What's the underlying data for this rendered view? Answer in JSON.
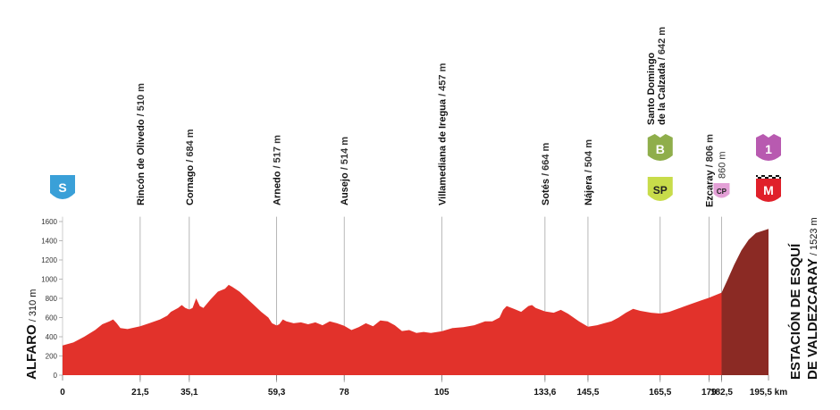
{
  "chart_data": {
    "type": "area",
    "colors": {
      "fill": "#e2322b",
      "climb_fill": "#8b2a24",
      "gridline": "#dddddd",
      "marker_line": "#999999"
    },
    "y_ticks": [
      "0",
      "200",
      "400",
      "600",
      "800",
      "1000",
      "1200",
      "1400",
      "1600"
    ],
    "ylim": [
      0,
      1700
    ],
    "xlim": [
      0,
      195.5
    ],
    "unit_label": "km",
    "x_ticks": [
      {
        "x": 0,
        "label": "0"
      },
      {
        "x": 21.5,
        "label": "21,5"
      },
      {
        "x": 35.1,
        "label": "35,1"
      },
      {
        "x": 59.3,
        "label": "59,3"
      },
      {
        "x": 78,
        "label": "78"
      },
      {
        "x": 105,
        "label": "105"
      },
      {
        "x": 133.6,
        "label": "133,6"
      },
      {
        "x": 145.5,
        "label": "145,5"
      },
      {
        "x": 165.5,
        "label": "165,5"
      },
      {
        "x": 179,
        "label": "179"
      },
      {
        "x": 182.5,
        "label": "182,5"
      },
      {
        "x": 195.5,
        "label": "195,5 km"
      }
    ],
    "profile": [
      [
        0,
        310
      ],
      [
        3,
        340
      ],
      [
        6,
        400
      ],
      [
        9,
        470
      ],
      [
        11,
        530
      ],
      [
        13,
        560
      ],
      [
        14,
        580
      ],
      [
        15,
        540
      ],
      [
        16,
        490
      ],
      [
        18,
        480
      ],
      [
        21.5,
        510
      ],
      [
        24,
        540
      ],
      [
        27,
        580
      ],
      [
        29,
        620
      ],
      [
        30,
        660
      ],
      [
        32,
        700
      ],
      [
        33,
        730
      ],
      [
        34,
        700
      ],
      [
        35.1,
        684
      ],
      [
        36,
        700
      ],
      [
        37,
        800
      ],
      [
        38,
        720
      ],
      [
        39,
        700
      ],
      [
        41,
        790
      ],
      [
        43,
        870
      ],
      [
        45,
        900
      ],
      [
        46,
        940
      ],
      [
        47,
        920
      ],
      [
        49,
        870
      ],
      [
        51,
        800
      ],
      [
        53,
        730
      ],
      [
        55,
        660
      ],
      [
        57,
        600
      ],
      [
        58,
        540
      ],
      [
        59.3,
        517
      ],
      [
        60,
        530
      ],
      [
        61,
        580
      ],
      [
        62,
        560
      ],
      [
        64,
        540
      ],
      [
        66,
        550
      ],
      [
        68,
        530
      ],
      [
        70,
        550
      ],
      [
        72,
        520
      ],
      [
        74,
        560
      ],
      [
        76,
        540
      ],
      [
        78,
        514
      ],
      [
        80,
        470
      ],
      [
        82,
        500
      ],
      [
        84,
        540
      ],
      [
        86,
        510
      ],
      [
        88,
        570
      ],
      [
        90,
        560
      ],
      [
        92,
        520
      ],
      [
        94,
        460
      ],
      [
        96,
        470
      ],
      [
        98,
        440
      ],
      [
        100,
        450
      ],
      [
        102,
        440
      ],
      [
        105,
        457
      ],
      [
        108,
        490
      ],
      [
        111,
        500
      ],
      [
        114,
        520
      ],
      [
        117,
        560
      ],
      [
        119,
        560
      ],
      [
        121,
        600
      ],
      [
        122,
        680
      ],
      [
        123,
        720
      ],
      [
        125,
        690
      ],
      [
        127,
        660
      ],
      [
        129,
        720
      ],
      [
        130,
        730
      ],
      [
        131,
        700
      ],
      [
        133.6,
        664
      ],
      [
        136,
        650
      ],
      [
        138,
        680
      ],
      [
        140,
        640
      ],
      [
        143,
        560
      ],
      [
        145.5,
        504
      ],
      [
        148,
        520
      ],
      [
        150,
        540
      ],
      [
        152,
        560
      ],
      [
        154,
        600
      ],
      [
        156,
        650
      ],
      [
        158,
        690
      ],
      [
        160,
        670
      ],
      [
        163,
        650
      ],
      [
        165.5,
        642
      ],
      [
        168,
        660
      ],
      [
        171,
        700
      ],
      [
        174,
        740
      ],
      [
        177,
        780
      ],
      [
        179,
        806
      ],
      [
        182.5,
        860
      ],
      [
        184,
        980
      ],
      [
        186,
        1150
      ],
      [
        188,
        1300
      ],
      [
        190,
        1410
      ],
      [
        192,
        1480
      ],
      [
        195.5,
        1523
      ]
    ],
    "climb_start_km": 182.5,
    "labels": [
      {
        "x": 21.5,
        "name": "Rincón de Olivedo",
        "alt": " / 510 m"
      },
      {
        "x": 35.1,
        "name": "Cornago",
        "alt": " / 684 m"
      },
      {
        "x": 59.3,
        "name": "Arnedo",
        "alt": " / 517 m"
      },
      {
        "x": 78,
        "name": "Ausejo",
        "alt": " / 514 m"
      },
      {
        "x": 105,
        "name": "Villamediana de Iregua",
        "alt": " / 457 m"
      },
      {
        "x": 133.6,
        "name": "Sotés",
        "alt": " / 664 m"
      },
      {
        "x": 145.5,
        "name": "Nájera",
        "alt": " / 504 m"
      },
      {
        "x": 165.5,
        "name": "Santo Domingo",
        "name2": "de la Calzada",
        "alt": " / 642 m"
      },
      {
        "x": 179,
        "name": "Ezcaray",
        "alt": " / 806 m"
      },
      {
        "x": 182.5,
        "name": "",
        "alt": "860 m"
      }
    ],
    "start_label": {
      "name": "ALFARO",
      "alt": " / 310 m"
    },
    "finish_label": {
      "line1": "ESTACIÓN DE ESQUÍ",
      "line2": "DE VALDEZCARAY",
      "alt": " / 1523 m"
    },
    "icons": [
      {
        "x": 0,
        "text": "S",
        "color": "#3aa0d8",
        "shape": "shield"
      },
      {
        "x": 165.5,
        "text": "B",
        "color": "#8fae4b",
        "shape": "tag"
      },
      {
        "x": 165.5,
        "text": "SP",
        "color": "#c8dc4a",
        "shape": "shield"
      },
      {
        "x": 182.5,
        "text": "CP",
        "color": "#e3a0d6",
        "shape": "small"
      },
      {
        "x": 195.5,
        "text": "1",
        "color": "#b85ab0",
        "shape": "tag"
      },
      {
        "x": 195.5,
        "text": "M",
        "color": "#e0202a",
        "shape": "checkered"
      }
    ]
  }
}
